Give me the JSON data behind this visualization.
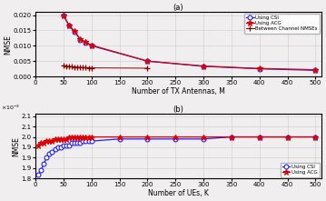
{
  "title_a": "(a)",
  "title_b": "(b)",
  "xlabel_a": "Number of TX Antennas, M",
  "xlabel_b": "Number of UEs, K",
  "ylabel": "NMSE",
  "a_M": [
    50,
    60,
    70,
    80,
    90,
    100,
    200,
    300,
    400,
    500
  ],
  "a_CSI": [
    0.02,
    0.0165,
    0.0145,
    0.012,
    0.011,
    0.01,
    0.005,
    0.0033,
    0.0025,
    0.002
  ],
  "a_ACG": [
    0.02,
    0.0167,
    0.0147,
    0.0122,
    0.0112,
    0.0102,
    0.005,
    0.0034,
    0.0026,
    0.0022
  ],
  "a_between_M": [
    50,
    55,
    60,
    65,
    70,
    75,
    80,
    85,
    90,
    95,
    100,
    200
  ],
  "a_between": [
    0.0035,
    0.0034,
    0.0033,
    0.0032,
    0.0031,
    0.003,
    0.003,
    0.0029,
    0.0029,
    0.0028,
    0.0028,
    0.0027
  ],
  "b_K": [
    5,
    10,
    15,
    20,
    25,
    30,
    35,
    40,
    45,
    50,
    55,
    60,
    65,
    70,
    75,
    80,
    85,
    90,
    95,
    100,
    150,
    200,
    250,
    300,
    350,
    400,
    450,
    500
  ],
  "b_CSI": [
    0.00182,
    0.00184,
    0.00187,
    0.0019,
    0.00192,
    0.00193,
    0.00194,
    0.00195,
    0.00195,
    0.00196,
    0.00196,
    0.00196,
    0.00197,
    0.00197,
    0.00197,
    0.00197,
    0.00198,
    0.00198,
    0.00198,
    0.00198,
    0.00199,
    0.00199,
    0.00199,
    0.00199,
    0.002,
    0.002,
    0.002,
    0.002
  ],
  "b_ACG": [
    0.00196,
    0.00197,
    0.00197,
    0.00198,
    0.00198,
    0.00198,
    0.00199,
    0.00199,
    0.00199,
    0.00199,
    0.00199,
    0.002,
    0.002,
    0.002,
    0.002,
    0.002,
    0.002,
    0.002,
    0.002,
    0.002,
    0.002,
    0.002,
    0.002,
    0.002,
    0.002,
    0.002,
    0.002,
    0.002
  ],
  "color_blue": "#1f1fff",
  "color_red": "#dd0000",
  "color_between": "#880000",
  "bg_color": "#f0eeee",
  "a_ylim": [
    0,
    0.021
  ],
  "a_yticks": [
    0,
    0.005,
    0.01,
    0.015,
    0.02
  ],
  "a_xlim": [
    0,
    510
  ],
  "a_xticks": [
    0,
    50,
    100,
    150,
    200,
    250,
    300,
    350,
    400,
    450,
    500
  ],
  "b_ylim": [
    0.0018,
    0.00211
  ],
  "b_xlim": [
    0,
    510
  ],
  "b_xticks": [
    0,
    50,
    100,
    150,
    200,
    250,
    300,
    350,
    400,
    450,
    500
  ]
}
